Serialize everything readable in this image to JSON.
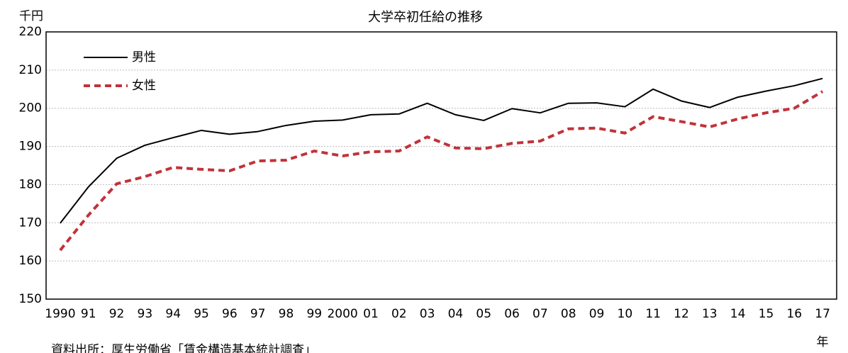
{
  "chart_data": {
    "type": "line",
    "title": "大学卒初任給の推移",
    "y_label": "千円",
    "x_label": "年",
    "source": "資料出所：厚生労働省「賃金構造基本統計調査」",
    "categories": [
      "1990",
      "91",
      "92",
      "93",
      "94",
      "95",
      "96",
      "97",
      "98",
      "99",
      "2000",
      "01",
      "02",
      "03",
      "04",
      "05",
      "06",
      "07",
      "08",
      "09",
      "10",
      "11",
      "12",
      "13",
      "14",
      "15",
      "16",
      "17"
    ],
    "series": [
      {
        "name": "男性",
        "color": "#000000",
        "dashed": false,
        "values": [
          169.9,
          179.4,
          186.9,
          190.3,
          192.3,
          194.2,
          193.2,
          193.9,
          195.5,
          196.6,
          196.9,
          198.3,
          198.5,
          201.3,
          198.3,
          196.8,
          199.9,
          198.8,
          201.3,
          201.4,
          200.4,
          205.0,
          201.9,
          200.2,
          202.9,
          204.5,
          205.9,
          207.8
        ]
      },
      {
        "name": "女性",
        "color": "#c0333a",
        "dashed": true,
        "values": [
          162.8,
          172.0,
          180.2,
          182.1,
          184.5,
          184.0,
          183.6,
          186.2,
          186.4,
          188.8,
          187.5,
          188.6,
          188.8,
          192.5,
          189.6,
          189.4,
          190.8,
          191.4,
          194.6,
          194.8,
          193.5,
          197.8,
          196.5,
          195.1,
          197.2,
          198.8,
          200.0,
          204.4
        ]
      }
    ],
    "ylim": [
      150,
      220
    ],
    "yticks": [
      150,
      160,
      170,
      180,
      190,
      200,
      210,
      220
    ],
    "grid": true,
    "legend": "top-left"
  }
}
